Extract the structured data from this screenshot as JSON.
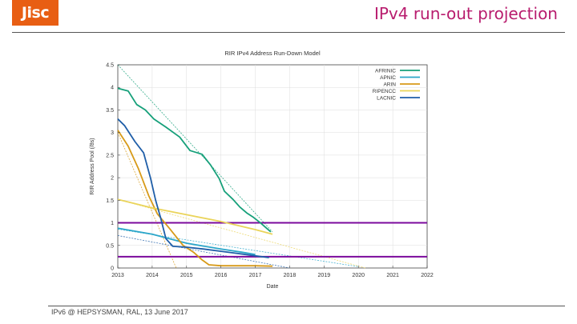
{
  "header": {
    "logo_text": "Jisc",
    "slide_title": "IPv4 run-out projection"
  },
  "footer": {
    "text": "IPv6 @ HEPSYSMAN, RAL, 13 June 2017"
  },
  "colors": {
    "brand_orange": "#e85e13",
    "title_magenta": "#b81c6e",
    "threshold_purple": "#7b0a9c"
  },
  "chart_data": {
    "type": "line",
    "title": "RIR IPv4 Address Run-Down Model",
    "xlabel": "Date",
    "ylabel": "RIR Address Pool (/8s)",
    "xlim": [
      2013,
      2022
    ],
    "ylim": [
      0,
      4.5
    ],
    "x_ticks": [
      "2013",
      "2014",
      "2015",
      "2016",
      "2017",
      "2018",
      "2019",
      "2020",
      "2021",
      "2022"
    ],
    "y_ticks": [
      "0",
      "0.5",
      "1",
      "1.5",
      "2",
      "2.5",
      "3",
      "3.5",
      "4",
      "4.5"
    ],
    "legend_position": "top-right",
    "series": [
      {
        "name": "AFRINIC",
        "color": "#16a07a",
        "values": [
          [
            2013.0,
            3.98
          ],
          [
            2013.3,
            3.92
          ],
          [
            2013.55,
            3.62
          ],
          [
            2013.8,
            3.5
          ],
          [
            2014.05,
            3.3
          ],
          [
            2014.4,
            3.12
          ],
          [
            2014.8,
            2.9
          ],
          [
            2015.1,
            2.6
          ],
          [
            2015.45,
            2.52
          ],
          [
            2015.7,
            2.28
          ],
          [
            2015.95,
            1.98
          ],
          [
            2016.1,
            1.7
          ],
          [
            2016.35,
            1.52
          ],
          [
            2016.55,
            1.35
          ],
          [
            2016.75,
            1.22
          ],
          [
            2016.95,
            1.12
          ],
          [
            2017.15,
            1.0
          ],
          [
            2017.3,
            0.9
          ],
          [
            2017.45,
            0.8
          ]
        ],
        "projection": [
          [
            2013.0,
            4.5
          ],
          [
            2017.5,
            0.8
          ]
        ]
      },
      {
        "name": "APNIC",
        "color": "#2ba6c9",
        "values": [
          [
            2013.0,
            0.88
          ],
          [
            2014.0,
            0.75
          ],
          [
            2015.0,
            0.55
          ],
          [
            2016.0,
            0.42
          ],
          [
            2016.6,
            0.35
          ],
          [
            2017.0,
            0.3
          ]
        ],
        "projection": [
          [
            2013.0,
            0.86
          ],
          [
            2020.0,
            0.03
          ]
        ]
      },
      {
        "name": "ARIN",
        "color": "#d79a18",
        "values": [
          [
            2013.0,
            3.05
          ],
          [
            2013.3,
            2.7
          ],
          [
            2013.6,
            2.2
          ],
          [
            2013.9,
            1.6
          ],
          [
            2014.15,
            1.2
          ],
          [
            2014.5,
            0.88
          ],
          [
            2014.9,
            0.5
          ],
          [
            2015.2,
            0.35
          ],
          [
            2015.45,
            0.18
          ],
          [
            2015.65,
            0.07
          ],
          [
            2016.0,
            0.05
          ],
          [
            2016.5,
            0.05
          ],
          [
            2017.0,
            0.05
          ],
          [
            2017.5,
            0.04
          ]
        ],
        "projection": [
          [
            2013.0,
            3.0
          ],
          [
            2014.7,
            0.0
          ]
        ]
      },
      {
        "name": "RIPENCC",
        "color": "#ead45a",
        "values": [
          [
            2013.0,
            1.52
          ],
          [
            2014.0,
            1.33
          ],
          [
            2015.0,
            1.18
          ],
          [
            2016.0,
            1.03
          ],
          [
            2017.0,
            0.85
          ],
          [
            2017.5,
            0.75
          ]
        ],
        "projection": [
          [
            2013.0,
            1.52
          ],
          [
            2020.2,
            0.0
          ]
        ]
      },
      {
        "name": "LACNIC",
        "color": "#1f5ea8",
        "values": [
          [
            2013.0,
            3.3
          ],
          [
            2013.2,
            3.15
          ],
          [
            2013.5,
            2.8
          ],
          [
            2013.75,
            2.55
          ],
          [
            2013.95,
            2.0
          ],
          [
            2014.1,
            1.5
          ],
          [
            2014.25,
            1.1
          ],
          [
            2014.4,
            0.65
          ],
          [
            2014.6,
            0.48
          ],
          [
            2015.0,
            0.46
          ],
          [
            2015.5,
            0.42
          ],
          [
            2016.0,
            0.37
          ],
          [
            2016.5,
            0.32
          ],
          [
            2017.0,
            0.27
          ],
          [
            2017.4,
            0.23
          ]
        ],
        "projection": [
          [
            2013.0,
            0.72
          ],
          [
            2018.0,
            0.0
          ]
        ]
      }
    ],
    "thresholds": [
      {
        "value": 1.0,
        "color": "#7b0a9c"
      },
      {
        "value": 0.25,
        "color": "#7b0a9c"
      }
    ]
  }
}
